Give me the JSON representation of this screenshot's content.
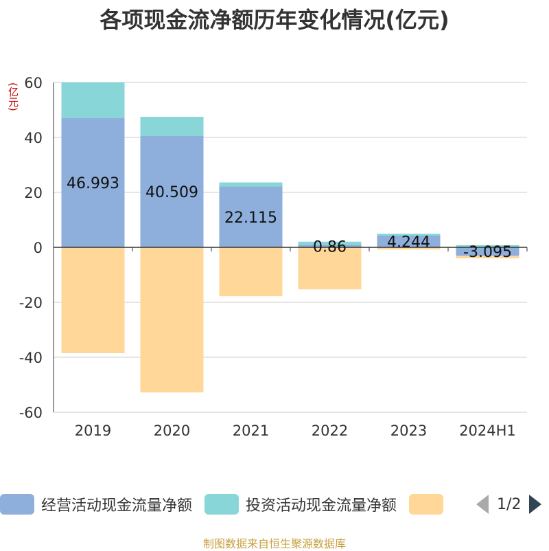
{
  "chart_data": {
    "type": "bar",
    "title": "各项现金流净额历年变化情况(亿元)",
    "ylabel": "(亿元)",
    "ylim": [
      -60,
      60
    ],
    "yticks": [
      60,
      40,
      20,
      0,
      -20,
      -40,
      -60
    ],
    "categories": [
      "2019",
      "2020",
      "2021",
      "2022",
      "2023",
      "2024H1"
    ],
    "series": [
      {
        "name": "经营活动现金流量净额",
        "color": "#8eaedb",
        "values": [
          46.993,
          40.509,
          22.115,
          0.86,
          4.244,
          -3.095
        ]
      },
      {
        "name": "投资活动现金流量净额",
        "color": "#88d6d8",
        "values": [
          13.0,
          7.0,
          1.5,
          1.2,
          0.7,
          0.8
        ]
      },
      {
        "name": "",
        "color": "#ffd799",
        "values": [
          -38.5,
          -52.8,
          -17.8,
          -15.3,
          -0.8,
          -0.9
        ]
      }
    ],
    "labels": [
      "46.993",
      "40.509",
      "22.115",
      "0.86",
      "4.244",
      "-3.095"
    ],
    "stacked": true,
    "grid": true,
    "legend_position": "bottom"
  },
  "legend": {
    "items": [
      {
        "label": "经营活动现金流量净额",
        "color": "#8eaedb"
      },
      {
        "label": "投资活动现金流量净额",
        "color": "#88d6d8"
      },
      {
        "label": "",
        "color": "#ffd799"
      }
    ],
    "page": "1/2"
  },
  "source": "制图数据来自恒生聚源数据库"
}
